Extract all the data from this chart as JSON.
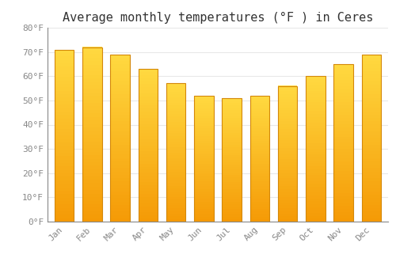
{
  "title": "Average monthly temperatures (°F ) in Ceres",
  "months": [
    "Jan",
    "Feb",
    "Mar",
    "Apr",
    "May",
    "Jun",
    "Jul",
    "Aug",
    "Sep",
    "Oct",
    "Nov",
    "Dec"
  ],
  "values": [
    71,
    72,
    69,
    63,
    57,
    52,
    51,
    52,
    56,
    60,
    65,
    69
  ],
  "bar_color_top": "#FFCC44",
  "bar_color_bottom": "#F59B00",
  "bar_edge_color": "#D4880A",
  "background_color": "#FFFFFF",
  "grid_color": "#E8E8E8",
  "ylim": [
    0,
    80
  ],
  "yticks": [
    0,
    10,
    20,
    30,
    40,
    50,
    60,
    70,
    80
  ],
  "ytick_labels": [
    "0°F",
    "10°F",
    "20°F",
    "30°F",
    "40°F",
    "50°F",
    "60°F",
    "70°F",
    "80°F"
  ],
  "tick_color": "#888888",
  "title_fontsize": 11,
  "tick_fontsize": 8,
  "font_family": "monospace",
  "bar_width": 0.7
}
